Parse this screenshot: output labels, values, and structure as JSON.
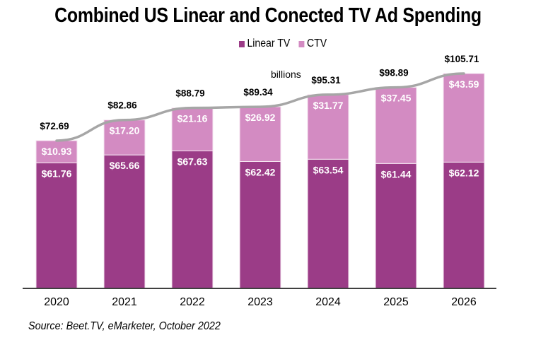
{
  "chart_data": {
    "type": "bar",
    "stacked": true,
    "title": "Combined US Linear and Conected TV Ad Spending",
    "unit_note": "billions",
    "categories": [
      "2020",
      "2021",
      "2022",
      "2023",
      "2024",
      "2025",
      "2026"
    ],
    "series": [
      {
        "name": "Linear TV",
        "color": "#9b3c87",
        "values": [
          61.76,
          65.66,
          67.63,
          62.42,
          63.54,
          61.44,
          62.12
        ],
        "labels": [
          "$61.76",
          "$65.66",
          "$67.63",
          "$62.42",
          "$63.54",
          "$61.44",
          "$62.12"
        ]
      },
      {
        "name": "CTV",
        "color": "#d38bc2",
        "values": [
          10.93,
          17.2,
          21.16,
          26.92,
          31.77,
          37.45,
          43.59
        ],
        "labels": [
          "$10.93",
          "$17.20",
          "$21.16",
          "$26.92",
          "$31.77",
          "$37.45",
          "$43.59"
        ]
      }
    ],
    "totals": {
      "name": "Total",
      "type": "line",
      "color": "#a6a6a6",
      "values": [
        72.69,
        82.86,
        88.79,
        89.34,
        95.31,
        98.89,
        105.71
      ],
      "labels": [
        "$72.69",
        "$82.86",
        "$88.79",
        "$89.34",
        "$95.31",
        "$98.89",
        "$105.71"
      ]
    },
    "xlabel": "",
    "ylabel": "",
    "ylim": [
      0,
      106
    ],
    "y_axis_visible": false,
    "grid": false,
    "legend": "top-center",
    "source": "Source: Beet.TV, eMarketer, October 2022"
  }
}
